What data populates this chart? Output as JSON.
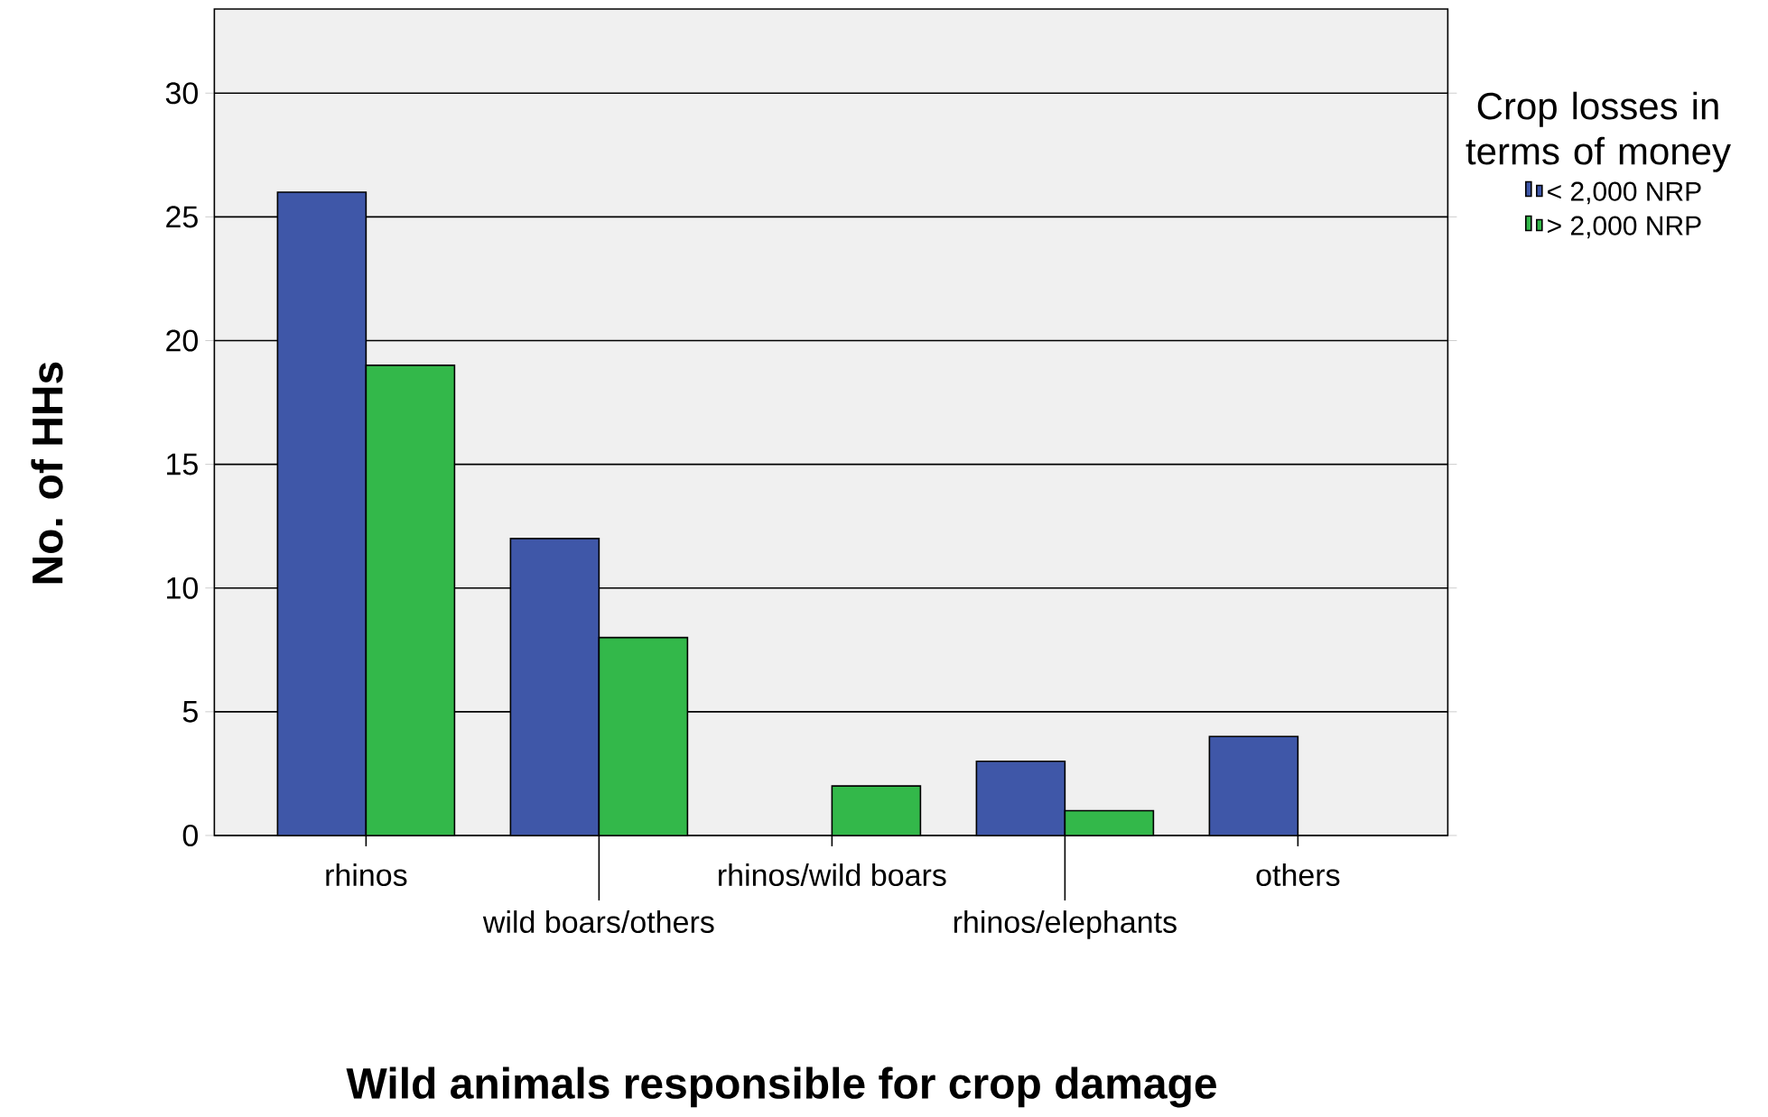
{
  "chart_data": {
    "type": "bar",
    "xlabel": "Wild animals responsible for crop damage",
    "ylabel": "No. of HHs",
    "legend_title": "Crop losses in terms of money",
    "categories": [
      "rhinos",
      "wild boars/others",
      "rhinos/wild boars",
      "rhinos/elephants",
      "others"
    ],
    "series": [
      {
        "name": "< 2,000 NRP",
        "color": "#3f57a8",
        "values": [
          26,
          12,
          null,
          3,
          4
        ]
      },
      {
        "name": "> 2,000 NRP",
        "color": "#33b84a",
        "values": [
          19,
          8,
          2,
          1,
          null
        ]
      }
    ],
    "ylim": [
      0,
      33.4
    ],
    "yticks": [
      0,
      5,
      10,
      15,
      20,
      25,
      30
    ],
    "grid": "y",
    "legend": "right"
  }
}
